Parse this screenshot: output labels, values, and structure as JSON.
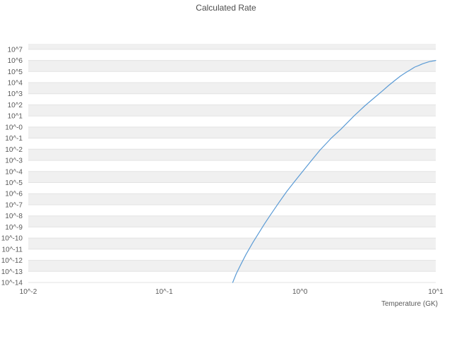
{
  "title": "Calculated Rate",
  "chart_data": {
    "type": "line",
    "title": "Calculated Rate",
    "xlabel": "Temperature (GK)",
    "ylabel": "",
    "x_scale": "log",
    "y_scale": "log",
    "x_log_range": [
      -2,
      1
    ],
    "y_log_range": [
      -14,
      7.5
    ],
    "grid": "horizontal-bands",
    "legend": "none",
    "x_ticks": [
      {
        "label": "10^-2",
        "log": -2
      },
      {
        "label": "10^-1",
        "log": -1
      },
      {
        "label": "10^0",
        "log": 0
      },
      {
        "label": "10^1",
        "log": 1
      }
    ],
    "y_ticks": [
      {
        "label": "10^7",
        "log": 7
      },
      {
        "label": "10^6",
        "log": 6
      },
      {
        "label": "10^5",
        "log": 5
      },
      {
        "label": "10^4",
        "log": 4
      },
      {
        "label": "10^3",
        "log": 3
      },
      {
        "label": "10^2",
        "log": 2
      },
      {
        "label": "10^1",
        "log": 1
      },
      {
        "label": "10^-0",
        "log": 0
      },
      {
        "label": "10^-1",
        "log": -1
      },
      {
        "label": "10^-2",
        "log": -2
      },
      {
        "label": "10^-3",
        "log": -3
      },
      {
        "label": "10^-4",
        "log": -4
      },
      {
        "label": "10^-5",
        "log": -5
      },
      {
        "label": "10^-6",
        "log": -6
      },
      {
        "label": "10^-7",
        "log": -7
      },
      {
        "label": "10^-8",
        "log": -8
      },
      {
        "label": "10^-9",
        "log": -9
      },
      {
        "label": "10^-10",
        "log": -10
      },
      {
        "label": "10^-11",
        "log": -11
      },
      {
        "label": "10^-12",
        "log": -12
      },
      {
        "label": "10^-13",
        "log": -13
      },
      {
        "label": "10^-14",
        "log": -14
      }
    ],
    "series": [
      {
        "name": "Calculated Rate",
        "color": "#5b9bd5",
        "temperature_GK": [
          0.32,
          0.34,
          0.37,
          0.4,
          0.45,
          0.5,
          0.55,
          0.6,
          0.7,
          0.8,
          0.9,
          1.0,
          1.2,
          1.4,
          1.7,
          2.0,
          2.5,
          3.0,
          3.5,
          4.0,
          4.5,
          5.0,
          5.5,
          6.0,
          6.5,
          7.0,
          7.5,
          8.0,
          8.5,
          9.0,
          9.5,
          10.0
        ],
        "log10_rate": [
          -14.0,
          -13.2,
          -12.3,
          -11.5,
          -10.4,
          -9.5,
          -8.7,
          -8.0,
          -6.8,
          -5.8,
          -5.0,
          -4.3,
          -3.1,
          -2.1,
          -1.0,
          -0.2,
          1.0,
          1.9,
          2.6,
          3.2,
          3.75,
          4.2,
          4.6,
          4.9,
          5.15,
          5.4,
          5.55,
          5.7,
          5.8,
          5.9,
          5.95,
          6.0
        ]
      }
    ],
    "style": {
      "band_color": "#f0f0f0",
      "gridline_color": "#e3e3e3",
      "text_color": "#595959",
      "background_color": "#ffffff"
    }
  }
}
